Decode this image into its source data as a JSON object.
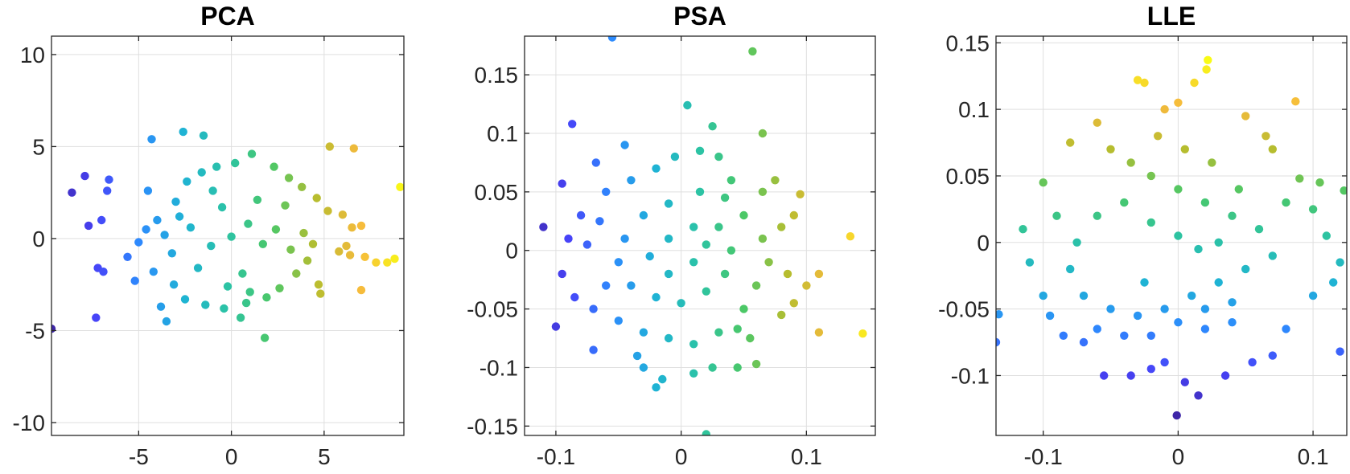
{
  "figure": {
    "colormap": "parula",
    "colormap_stops": [
      "#3e26a8",
      "#4743f8",
      "#2d8bfd",
      "#1fb3d4",
      "#2cc3a4",
      "#4cc867",
      "#b7bd2f",
      "#f6ba3d",
      "#f9fb15"
    ]
  },
  "chart_data": [
    {
      "type": "scatter",
      "title": "PCA",
      "xlabel": "",
      "ylabel": "",
      "xlim": [
        -9.7,
        9.3
      ],
      "ylim": [
        -10.7,
        11
      ],
      "xticks": [
        -5,
        0,
        5
      ],
      "xtick_labels": [
        "-5",
        "0",
        "5"
      ],
      "yticks": [
        -10,
        -5,
        0,
        5,
        10
      ],
      "ytick_labels": [
        "-10",
        "-5",
        "0",
        "5",
        "10"
      ],
      "grid": true,
      "color_by": "x",
      "color_range": [
        -9.7,
        9.3
      ],
      "points": [
        [
          -9.7,
          -4.9
        ],
        [
          9.1,
          2.8
        ],
        [
          -8.6,
          2.5
        ],
        [
          -7.9,
          3.4
        ],
        [
          -6.7,
          2.6
        ],
        [
          -7.0,
          1.0
        ],
        [
          -7.7,
          0.7
        ],
        [
          -7.2,
          -1.6
        ],
        [
          -6.9,
          -1.8
        ],
        [
          -7.3,
          -4.3
        ],
        [
          -4.3,
          5.4
        ],
        [
          -2.6,
          5.8
        ],
        [
          -1.5,
          5.6
        ],
        [
          6.6,
          4.9
        ],
        [
          5.3,
          5.0
        ],
        [
          8.8,
          -1.1
        ],
        [
          8.4,
          -1.3
        ],
        [
          7.8,
          -1.3
        ],
        [
          7.2,
          -1.0
        ],
        [
          7.0,
          -2.8
        ],
        [
          1.8,
          -5.4
        ],
        [
          0.5,
          -4.3
        ],
        [
          -3.5,
          -4.5
        ],
        [
          -3.8,
          -3.7
        ],
        [
          -5.6,
          -1.0
        ],
        [
          -5.2,
          -2.3
        ],
        [
          6.0,
          1.3
        ],
        [
          6.5,
          0.6
        ],
        [
          7.0,
          0.7
        ],
        [
          6.2,
          -0.4
        ],
        [
          5.8,
          -0.7
        ],
        [
          6.4,
          -0.9
        ],
        [
          4.8,
          -3.0
        ],
        [
          4.7,
          -2.5
        ],
        [
          -6.6,
          3.2
        ],
        [
          -5.0,
          -0.2
        ],
        [
          -4.6,
          0.5
        ],
        [
          -4.0,
          1.0
        ],
        [
          -3.2,
          -0.8
        ],
        [
          -3.0,
          2.0
        ],
        [
          -2.4,
          3.1
        ],
        [
          -1.6,
          3.6
        ],
        [
          -0.8,
          3.9
        ],
        [
          0.2,
          4.1
        ],
        [
          1.1,
          4.6
        ],
        [
          2.3,
          3.9
        ],
        [
          3.1,
          3.3
        ],
        [
          3.8,
          2.8
        ],
        [
          4.6,
          2.2
        ],
        [
          5.2,
          1.5
        ],
        [
          4.1,
          -1.2
        ],
        [
          3.5,
          -1.9
        ],
        [
          2.6,
          -2.7
        ],
        [
          1.9,
          -3.2
        ],
        [
          0.8,
          -3.5
        ],
        [
          -0.4,
          -3.8
        ],
        [
          -1.4,
          -3.6
        ],
        [
          -2.5,
          -3.3
        ],
        [
          -3.1,
          -2.5
        ],
        [
          -4.2,
          -1.8
        ],
        [
          -3.6,
          0.2
        ],
        [
          -2.2,
          0.6
        ],
        [
          -1.1,
          -0.4
        ],
        [
          0.0,
          0.1
        ],
        [
          0.9,
          0.8
        ],
        [
          1.7,
          -0.3
        ],
        [
          2.4,
          0.5
        ],
        [
          3.2,
          -0.6
        ],
        [
          -0.5,
          1.7
        ],
        [
          -1.8,
          -1.6
        ],
        [
          0.6,
          -1.9
        ],
        [
          1.4,
          2.1
        ],
        [
          -2.8,
          1.2
        ],
        [
          2.9,
          1.8
        ],
        [
          -0.2,
          -2.6
        ],
        [
          3.9,
          0.3
        ],
        [
          -4.5,
          2.6
        ],
        [
          4.4,
          -0.3
        ],
        [
          -1.0,
          2.6
        ],
        [
          1.0,
          -2.9
        ]
      ]
    },
    {
      "type": "scatter",
      "title": "PSA",
      "xlabel": "",
      "ylabel": "",
      "xlim": [
        -0.125,
        0.155
      ],
      "ylim": [
        -0.158,
        0.183
      ],
      "xticks": [
        -0.1,
        0,
        0.1
      ],
      "xtick_labels": [
        "-0.1",
        "0",
        "0.1"
      ],
      "yticks": [
        -0.15,
        -0.1,
        -0.05,
        0,
        0.05,
        0.1,
        0.15
      ],
      "ytick_labels": [
        "-0.15",
        "-0.1",
        "-0.05",
        "0",
        "0.05",
        "0.1",
        "0.15"
      ],
      "grid": true,
      "color_by": "x",
      "color_range": [
        -0.125,
        0.155
      ],
      "points": [
        [
          -0.055,
          0.182
        ],
        [
          0.057,
          0.17
        ],
        [
          -0.087,
          0.108
        ],
        [
          0.005,
          0.124
        ],
        [
          0.025,
          0.106
        ],
        [
          0.065,
          0.1
        ],
        [
          -0.068,
          0.075
        ],
        [
          -0.045,
          0.09
        ],
        [
          -0.095,
          0.057
        ],
        [
          -0.11,
          0.02
        ],
        [
          -0.1,
          -0.065
        ],
        [
          -0.07,
          -0.085
        ],
        [
          -0.035,
          -0.09
        ],
        [
          -0.03,
          -0.1
        ],
        [
          -0.015,
          -0.11
        ],
        [
          -0.02,
          -0.117
        ],
        [
          0.01,
          -0.105
        ],
        [
          0.025,
          -0.1
        ],
        [
          0.045,
          -0.1
        ],
        [
          0.06,
          -0.097
        ],
        [
          0.02,
          -0.157
        ],
        [
          0.045,
          -0.067
        ],
        [
          0.08,
          -0.055
        ],
        [
          0.09,
          -0.045
        ],
        [
          0.1,
          -0.03
        ],
        [
          0.11,
          -0.02
        ],
        [
          0.11,
          -0.07
        ],
        [
          0.135,
          0.012
        ],
        [
          0.145,
          -0.071
        ],
        [
          0.095,
          0.048
        ],
        [
          0.09,
          0.03
        ],
        [
          0.075,
          0.06
        ],
        [
          0.065,
          0.05
        ],
        [
          0.04,
          0.06
        ],
        [
          0.03,
          0.08
        ],
        [
          0.015,
          0.085
        ],
        [
          -0.005,
          0.08
        ],
        [
          -0.02,
          0.07
        ],
        [
          -0.04,
          0.06
        ],
        [
          -0.06,
          0.05
        ],
        [
          -0.08,
          0.03
        ],
        [
          -0.09,
          0.01
        ],
        [
          -0.095,
          -0.02
        ],
        [
          -0.085,
          -0.04
        ],
        [
          -0.07,
          -0.05
        ],
        [
          -0.05,
          -0.06
        ],
        [
          -0.03,
          -0.07
        ],
        [
          -0.01,
          -0.075
        ],
        [
          0.01,
          -0.08
        ],
        [
          0.03,
          -0.07
        ],
        [
          0.05,
          -0.05
        ],
        [
          0.06,
          -0.03
        ],
        [
          0.07,
          -0.01
        ],
        [
          0.065,
          0.01
        ],
        [
          0.05,
          0.03
        ],
        [
          0.035,
          0.045
        ],
        [
          0.015,
          0.05
        ],
        [
          -0.01,
          0.04
        ],
        [
          -0.03,
          0.03
        ],
        [
          -0.045,
          0.01
        ],
        [
          -0.05,
          -0.01
        ],
        [
          -0.04,
          -0.03
        ],
        [
          -0.02,
          -0.04
        ],
        [
          0.0,
          -0.045
        ],
        [
          0.02,
          -0.035
        ],
        [
          0.035,
          -0.02
        ],
        [
          0.04,
          0.0
        ],
        [
          0.03,
          0.02
        ],
        [
          0.01,
          0.02
        ],
        [
          -0.01,
          0.01
        ],
        [
          -0.025,
          -0.005
        ],
        [
          -0.01,
          -0.02
        ],
        [
          0.01,
          -0.01
        ],
        [
          0.02,
          0.005
        ],
        [
          -0.065,
          0.025
        ],
        [
          -0.075,
          0.005
        ],
        [
          -0.06,
          -0.03
        ],
        [
          0.08,
          0.02
        ],
        [
          0.085,
          -0.02
        ],
        [
          0.055,
          -0.075
        ]
      ]
    },
    {
      "type": "scatter",
      "title": "LLE",
      "xlabel": "",
      "ylabel": "",
      "xlim": [
        -0.135,
        0.125
      ],
      "ylim": [
        -0.145,
        0.155
      ],
      "xticks": [
        -0.1,
        0,
        0.1
      ],
      "xtick_labels": [
        "-0.1",
        "0",
        "0.1"
      ],
      "yticks": [
        -0.1,
        -0.05,
        0,
        0.05,
        0.1,
        0.15
      ],
      "ytick_labels": [
        "-0.1",
        "-0.05",
        "0",
        "0.05",
        "0.1",
        "0.15"
      ],
      "grid": true,
      "color_by": "y",
      "color_range": [
        -0.13,
        0.137
      ],
      "points": [
        [
          -0.135,
          -0.075
        ],
        [
          -0.133,
          -0.054
        ],
        [
          0.123,
          0.039
        ],
        [
          0.12,
          -0.082
        ],
        [
          0.022,
          0.137
        ],
        [
          0.021,
          0.13
        ],
        [
          0.087,
          0.106
        ],
        [
          -0.03,
          0.122
        ],
        [
          -0.025,
          0.12
        ],
        [
          0.012,
          0.12
        ],
        [
          0.0,
          0.105
        ],
        [
          -0.01,
          0.1
        ],
        [
          0.05,
          0.095
        ],
        [
          0.065,
          0.08
        ],
        [
          0.07,
          0.07
        ],
        [
          0.09,
          0.048
        ],
        [
          0.105,
          0.045
        ],
        [
          0.1,
          0.025
        ],
        [
          0.11,
          0.005
        ],
        [
          0.12,
          -0.015
        ],
        [
          0.115,
          -0.03
        ],
        [
          0.1,
          -0.04
        ],
        [
          0.08,
          -0.065
        ],
        [
          0.07,
          -0.085
        ],
        [
          0.055,
          -0.09
        ],
        [
          0.035,
          -0.1
        ],
        [
          0.015,
          -0.115
        ],
        [
          0.005,
          -0.105
        ],
        [
          -0.01,
          -0.09
        ],
        [
          -0.02,
          -0.095
        ],
        [
          -0.035,
          -0.1
        ],
        [
          -0.055,
          -0.1
        ],
        [
          -0.07,
          -0.075
        ],
        [
          -0.085,
          -0.07
        ],
        [
          -0.095,
          -0.055
        ],
        [
          -0.1,
          -0.04
        ],
        [
          -0.11,
          -0.015
        ],
        [
          -0.115,
          0.01
        ],
        [
          -0.1,
          0.045
        ],
        [
          -0.08,
          0.075
        ],
        [
          -0.06,
          0.09
        ],
        [
          -0.05,
          0.07
        ],
        [
          -0.035,
          0.06
        ],
        [
          -0.02,
          0.05
        ],
        [
          0.0,
          0.04
        ],
        [
          0.02,
          0.03
        ],
        [
          0.04,
          0.02
        ],
        [
          0.06,
          0.01
        ],
        [
          0.07,
          -0.01
        ],
        [
          0.05,
          -0.02
        ],
        [
          0.03,
          -0.03
        ],
        [
          0.01,
          -0.04
        ],
        [
          -0.01,
          -0.05
        ],
        [
          -0.03,
          -0.055
        ],
        [
          -0.05,
          -0.05
        ],
        [
          -0.07,
          -0.04
        ],
        [
          -0.08,
          -0.02
        ],
        [
          -0.075,
          0.0
        ],
        [
          -0.06,
          0.02
        ],
        [
          -0.04,
          0.03
        ],
        [
          -0.02,
          0.015
        ],
        [
          0.0,
          0.005
        ],
        [
          0.015,
          -0.005
        ],
        [
          0.03,
          0.0
        ],
        [
          0.045,
          0.04
        ],
        [
          0.025,
          0.06
        ],
        [
          0.005,
          0.07
        ],
        [
          -0.015,
          0.08
        ],
        [
          -0.04,
          -0.07
        ],
        [
          -0.02,
          -0.07
        ],
        [
          0.0,
          -0.06
        ],
        [
          0.02,
          -0.065
        ],
        [
          0.04,
          -0.06
        ],
        [
          -0.06,
          -0.065
        ],
        [
          0.08,
          0.03
        ],
        [
          -0.09,
          0.02
        ],
        [
          -0.001,
          -0.13
        ],
        [
          0.02,
          -0.05
        ],
        [
          -0.025,
          -0.03
        ],
        [
          0.04,
          -0.045
        ]
      ]
    }
  ]
}
